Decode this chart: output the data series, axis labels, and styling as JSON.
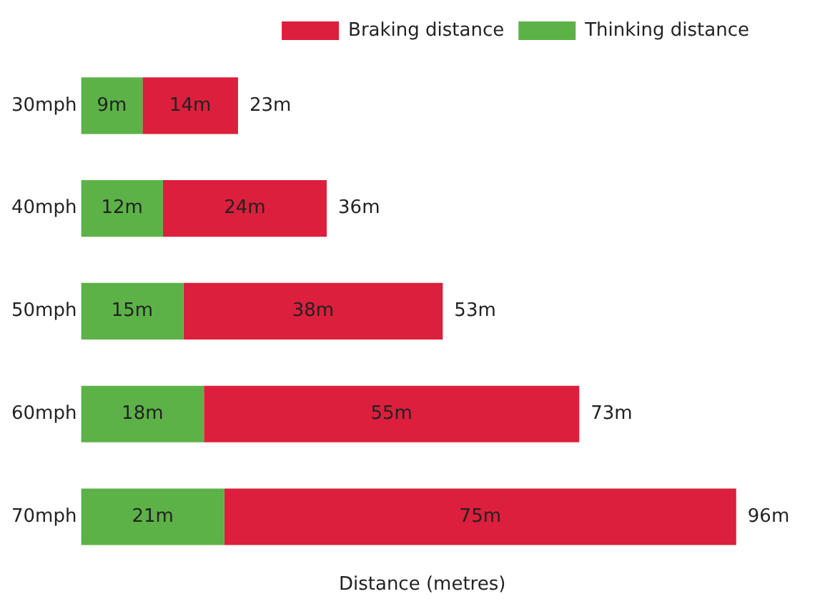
{
  "chart_data": {
    "type": "bar",
    "orientation": "horizontal",
    "stacked": true,
    "xlabel": "Distance (metres)",
    "categories": [
      "30mph",
      "40mph",
      "50mph",
      "60mph",
      "70mph"
    ],
    "series": [
      {
        "name": "Thinking distance",
        "color": "#5cb247",
        "values": [
          9,
          12,
          15,
          18,
          21
        ],
        "value_labels": [
          "9m",
          "12m",
          "15m",
          "18m",
          "21m"
        ]
      },
      {
        "name": "Braking distance",
        "color": "#dc1f3c",
        "values": [
          14,
          24,
          38,
          55,
          75
        ],
        "value_labels": [
          "14m",
          "24m",
          "38m",
          "55m",
          "75m"
        ]
      }
    ],
    "totals": [
      "23m",
      "36m",
      "53m",
      "73m",
      "96m"
    ],
    "tick_labels": "y",
    "grid": false,
    "legend": "top right"
  }
}
